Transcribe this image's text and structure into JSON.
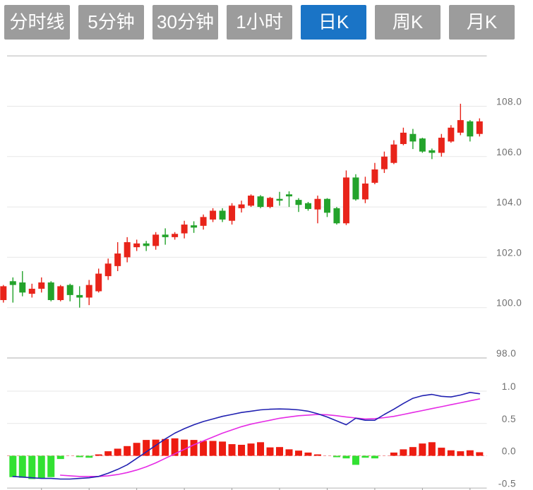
{
  "toolbar": {
    "buttons": [
      {
        "id": "minute-line",
        "label": "分时线",
        "active": false
      },
      {
        "id": "5min",
        "label": "5分钟",
        "active": false
      },
      {
        "id": "30min",
        "label": "30分钟",
        "active": false
      },
      {
        "id": "1hour",
        "label": "1小时",
        "active": false
      },
      {
        "id": "daily-k",
        "label": "日K",
        "active": true
      },
      {
        "id": "weekly-k",
        "label": "周K",
        "active": false
      },
      {
        "id": "monthly-k",
        "label": "月K",
        "active": false
      }
    ]
  },
  "colors": {
    "candle_up": "#e8241a",
    "candle_down": "#23a32b",
    "hist_up": "#ed1c11",
    "hist_down": "#32e132",
    "dif_line": "#2121b1",
    "dea_line": "#e52be5",
    "zero_line": "#f2989b",
    "grid": "#e7e7e7",
    "panel_border": "#c9c9c9",
    "axis_text": "#6e6e6e",
    "tick": "#999999",
    "button_bg": "#9c9c9c",
    "button_active_bg": "#1a74c6",
    "button_text": "#ffffff"
  },
  "chart_data": {
    "type": "candlestick+macd",
    "price_panel": {
      "ylim": [
        98.0,
        110.0
      ],
      "grid": true,
      "y_ticks": [
        {
          "v": 108.0,
          "label": "108.0"
        },
        {
          "v": 106.0,
          "label": "106.0"
        },
        {
          "v": 104.0,
          "label": "104.0"
        },
        {
          "v": 102.0,
          "label": "102.0"
        },
        {
          "v": 100.0,
          "label": "100.0"
        },
        {
          "v": 98.0,
          "label": "98.0"
        }
      ],
      "candles_format": [
        "open",
        "high",
        "low",
        "close"
      ],
      "candles": [
        [
          100.3,
          100.9,
          100.2,
          100.85
        ],
        [
          101.05,
          101.2,
          100.2,
          100.9
        ],
        [
          101.0,
          101.45,
          100.45,
          100.6
        ],
        [
          100.55,
          100.95,
          100.4,
          100.75
        ],
        [
          100.75,
          101.2,
          100.6,
          101.0
        ],
        [
          101.0,
          101.05,
          100.25,
          100.3
        ],
        [
          100.3,
          100.9,
          100.25,
          100.85
        ],
        [
          100.9,
          100.95,
          100.25,
          100.5
        ],
        [
          100.5,
          100.85,
          100.0,
          100.4
        ],
        [
          100.4,
          101.1,
          100.1,
          100.9
        ],
        [
          100.65,
          101.55,
          100.6,
          101.35
        ],
        [
          101.25,
          101.95,
          101.1,
          101.75
        ],
        [
          101.65,
          102.6,
          101.45,
          102.15
        ],
        [
          102.0,
          102.8,
          101.8,
          102.6
        ],
        [
          102.4,
          102.7,
          102.25,
          102.55
        ],
        [
          102.55,
          102.65,
          102.25,
          102.45
        ],
        [
          102.45,
          103.0,
          102.3,
          102.9
        ],
        [
          102.9,
          103.15,
          102.5,
          102.8
        ],
        [
          102.8,
          103.0,
          102.7,
          102.93
        ],
        [
          102.95,
          103.45,
          102.75,
          103.3
        ],
        [
          103.27,
          103.43,
          102.97,
          103.18
        ],
        [
          103.25,
          103.7,
          103.1,
          103.6
        ],
        [
          103.5,
          103.95,
          103.4,
          103.85
        ],
        [
          103.85,
          103.95,
          103.4,
          103.5
        ],
        [
          103.45,
          104.15,
          103.3,
          104.05
        ],
        [
          103.95,
          104.25,
          103.78,
          104.1
        ],
        [
          104.05,
          104.5,
          104.0,
          104.45
        ],
        [
          104.42,
          104.47,
          103.95,
          104.0
        ],
        [
          104.0,
          104.4,
          103.95,
          104.36
        ],
        [
          104.32,
          104.6,
          104.05,
          104.25
        ],
        [
          104.5,
          104.62,
          104.0,
          104.42
        ],
        [
          104.28,
          104.35,
          103.8,
          104.08
        ],
        [
          104.15,
          104.2,
          103.85,
          103.92
        ],
        [
          103.9,
          104.45,
          103.35,
          104.32
        ],
        [
          104.32,
          104.35,
          103.6,
          103.77
        ],
        [
          103.95,
          104.0,
          103.3,
          103.35
        ],
        [
          103.35,
          105.45,
          103.28,
          105.17
        ],
        [
          105.17,
          105.3,
          104.25,
          104.3
        ],
        [
          104.3,
          105.2,
          104.15,
          104.93
        ],
        [
          104.96,
          105.75,
          104.9,
          105.49
        ],
        [
          105.5,
          106.2,
          105.35,
          106.0
        ],
        [
          105.75,
          106.65,
          105.7,
          106.48
        ],
        [
          106.5,
          107.15,
          106.45,
          106.95
        ],
        [
          106.9,
          107.1,
          106.3,
          106.6
        ],
        [
          106.72,
          106.75,
          106.15,
          106.2
        ],
        [
          106.25,
          106.32,
          105.9,
          106.15
        ],
        [
          106.15,
          106.9,
          106.0,
          106.75
        ],
        [
          106.6,
          107.25,
          106.55,
          107.15
        ],
        [
          106.95,
          108.1,
          106.85,
          107.45
        ],
        [
          107.4,
          107.45,
          106.6,
          106.8
        ],
        [
          106.9,
          107.52,
          106.8,
          107.4
        ]
      ]
    },
    "macd_panel": {
      "ylim": [
        -0.5,
        1.0
      ],
      "grid": true,
      "y_ticks": [
        {
          "v": 1.0,
          "label": "1.0"
        },
        {
          "v": 0.5,
          "label": "0.5"
        },
        {
          "v": 0.0,
          "label": "0.0"
        },
        {
          "v": -0.5,
          "label": "-0.5"
        }
      ],
      "histogram": [
        null,
        -0.33,
        -0.34,
        -0.36,
        -0.35,
        -0.33,
        -0.05,
        null,
        -0.02,
        -0.03,
        0.02,
        0.07,
        0.11,
        0.15,
        0.2,
        0.245,
        0.25,
        0.26,
        0.27,
        0.25,
        0.245,
        0.23,
        0.23,
        0.22,
        0.18,
        0.17,
        0.19,
        0.21,
        0.13,
        0.135,
        0.1,
        0.08,
        0.05,
        0.02,
        null,
        -0.02,
        -0.04,
        -0.14,
        -0.03,
        -0.04,
        null,
        0.05,
        0.1,
        0.135,
        0.19,
        0.21,
        0.125,
        0.085,
        0.07,
        0.085,
        0.055
      ],
      "dif": [
        null,
        -0.32,
        -0.33,
        -0.34,
        -0.35,
        -0.35,
        -0.36,
        -0.36,
        -0.35,
        -0.34,
        -0.32,
        -0.27,
        -0.21,
        -0.14,
        -0.04,
        0.06,
        0.16,
        0.26,
        0.35,
        0.42,
        0.48,
        0.53,
        0.57,
        0.61,
        0.64,
        0.67,
        0.69,
        0.71,
        0.72,
        0.725,
        0.72,
        0.71,
        0.69,
        0.65,
        0.6,
        0.54,
        0.48,
        0.58,
        0.55,
        0.55,
        0.64,
        0.72,
        0.81,
        0.89,
        0.93,
        0.95,
        0.92,
        0.91,
        0.94,
        0.98,
        0.96
      ],
      "dea": [
        null,
        null,
        null,
        null,
        null,
        null,
        -0.3,
        -0.31,
        -0.32,
        -0.32,
        -0.32,
        -0.31,
        -0.29,
        -0.26,
        -0.22,
        -0.17,
        -0.11,
        -0.04,
        0.03,
        0.1,
        0.17,
        0.23,
        0.29,
        0.35,
        0.4,
        0.45,
        0.49,
        0.52,
        0.55,
        0.58,
        0.6,
        0.62,
        0.63,
        0.64,
        0.635,
        0.62,
        0.6,
        0.585,
        0.57,
        0.575,
        0.59,
        0.61,
        0.64,
        0.67,
        0.7,
        0.73,
        0.76,
        0.79,
        0.82,
        0.85,
        0.88
      ]
    }
  }
}
